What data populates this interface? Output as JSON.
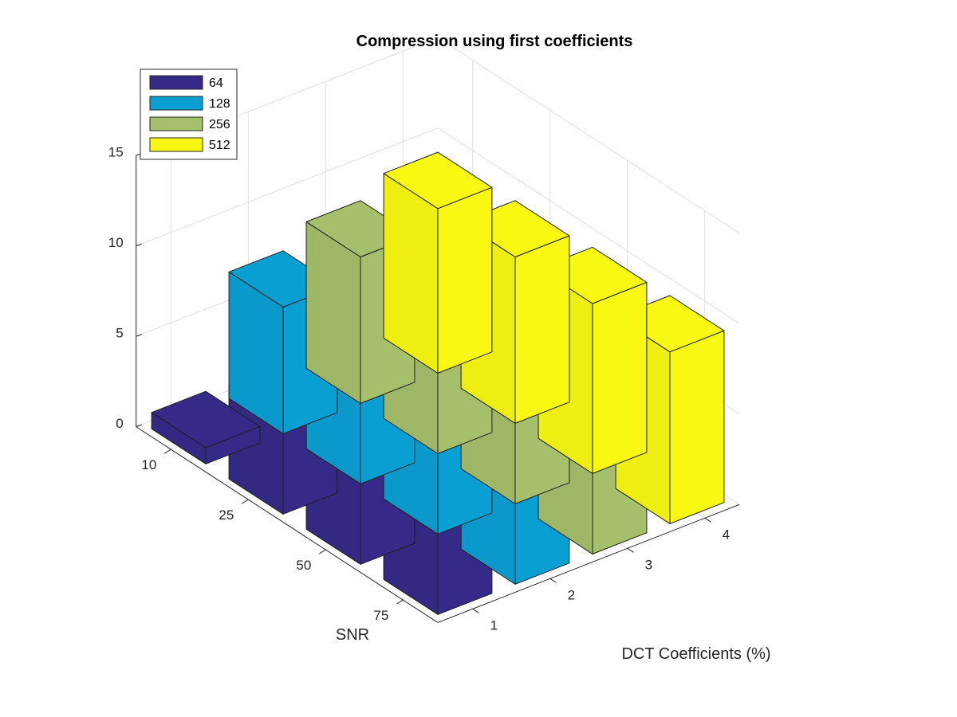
{
  "chart_data": {
    "type": "bar",
    "style": "3d-grouped",
    "title": "Compression using first coefficients",
    "xlabel": "DCT Coefficients (%)",
    "ylabel": "SNR",
    "zlabel": "",
    "x_categories": [
      "1",
      "2",
      "3",
      "4"
    ],
    "y_categories": [
      "10",
      "25",
      "50",
      "75"
    ],
    "zlim": [
      0,
      15
    ],
    "z_ticks": [
      "0",
      "5",
      "10",
      "15"
    ],
    "grid": true,
    "legend_position": "top-left",
    "series": [
      {
        "name": "64",
        "color": "#352a87",
        "values": [
          0.9,
          5.2,
          5.9,
          6.5
        ]
      },
      {
        "name": "128",
        "color": "#0a9fd2",
        "values": [
          7.0,
          7.0,
          7.9,
          8.2
        ]
      },
      {
        "name": "256",
        "color": "#a5bf6a",
        "values": [
          8.1,
          8.1,
          9.0,
          8.9
        ]
      },
      {
        "name": "512",
        "color": "#f8f812",
        "values": [
          9.1,
          9.2,
          9.4,
          9.5
        ]
      }
    ]
  }
}
